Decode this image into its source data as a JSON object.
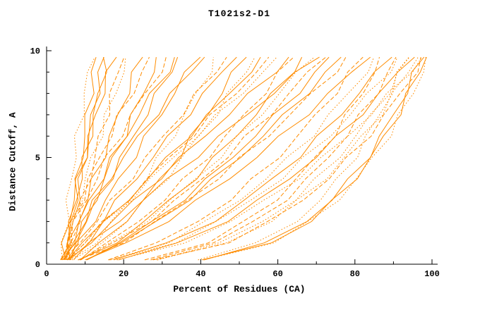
{
  "title": "T1021s2-D1",
  "axes": {
    "xlabel": "Percent of Residues (CA)",
    "ylabel": "Distance Cutoff, A"
  },
  "chart_data": {
    "type": "line",
    "title": "T1021s2-D1",
    "xlabel": "Percent of Residues (CA)",
    "ylabel": "Distance Cutoff, A",
    "xlim": [
      0,
      100
    ],
    "ylim": [
      0,
      10
    ],
    "x_ticks": [
      0,
      20,
      40,
      60,
      80,
      100
    ],
    "x_minor_step": 10,
    "y_ticks": [
      0,
      5,
      10
    ],
    "y_minor_step": 1,
    "grid": false,
    "legend": "none",
    "line_color": "#ff8c00",
    "y_values": [
      0.2,
      1,
      2,
      3,
      4,
      5,
      6,
      7,
      8,
      9,
      9.7
    ],
    "series": [
      {
        "style": "dotted",
        "x": [
          40.7,
          58.4,
          68.6,
          75.3,
          80.5,
          84.9,
          88.6,
          91.9,
          94.9,
          97.5,
          99.2
        ]
      },
      {
        "style": "solid",
        "x": [
          40.0,
          57.3,
          67.2,
          73.8,
          78.9,
          83.2,
          86.8,
          90.1,
          93.0,
          95.6,
          97.3
        ]
      },
      {
        "style": "dotted",
        "x": [
          29.1,
          46.7,
          57.8,
          65.7,
          72.1,
          77.3,
          82.1,
          86.4,
          90.2,
          93.7,
          96.0
        ]
      },
      {
        "style": "dashed",
        "x": [
          28.1,
          46.5,
          58.1,
          66.3,
          73.0,
          78.5,
          83.4,
          87.9,
          91.9,
          95.6,
          98.0
        ]
      },
      {
        "style": "dotted",
        "x": [
          27.9,
          45.2,
          56.2,
          64.0,
          70.3,
          75.6,
          80.2,
          84.5,
          88.3,
          91.8,
          94.0
        ]
      },
      {
        "style": "solid",
        "x": [
          18.7,
          34.4,
          46.2,
          55.3,
          62.9,
          69.6,
          75.8,
          81.3,
          86.5,
          91.4,
          94.7
        ]
      },
      {
        "style": "dotted",
        "x": [
          17.4,
          32.8,
          44.3,
          53.2,
          60.6,
          67.2,
          73.2,
          78.7,
          83.7,
          88.5,
          91.7
        ]
      },
      {
        "style": "dashed",
        "x": [
          26.4,
          43.3,
          54.1,
          61.7,
          67.9,
          73.0,
          77.6,
          81.7,
          85.4,
          88.8,
          91.0
        ]
      },
      {
        "style": "solid",
        "x": [
          17.0,
          31.9,
          43.0,
          51.6,
          58.7,
          65.1,
          70.9,
          76.1,
          81.0,
          85.7,
          88.7
        ]
      },
      {
        "style": "dotted",
        "x": [
          19.1,
          35.4,
          47.6,
          57.0,
          64.8,
          71.8,
          78.1,
          83.8,
          89.1,
          94.2,
          97.6
        ]
      },
      {
        "style": "dashed",
        "x": [
          25.3,
          41.5,
          51.8,
          59.1,
          65.0,
          69.9,
          74.2,
          78.2,
          81.7,
          85.0,
          87.1
        ]
      },
      {
        "style": "dotted",
        "x": [
          38.5,
          55.0,
          64.6,
          70.9,
          75.8,
          79.8,
          83.3,
          86.4,
          89.2,
          91.7,
          93.3
        ]
      },
      {
        "style": "solid",
        "x": [
          41.0,
          58.3,
          68.2,
          74.8,
          79.9,
          84.2,
          87.8,
          91.1,
          94.0,
          96.6,
          98.3
        ]
      },
      {
        "style": "dotted",
        "x": [
          16.6,
          30.9,
          41.7,
          49.9,
          56.8,
          63.0,
          68.6,
          73.6,
          78.3,
          82.8,
          85.8
        ]
      },
      {
        "style": "dashed",
        "x": [
          15.1,
          29.0,
          39.3,
          47.3,
          53.9,
          59.9,
          65.2,
          70.1,
          74.6,
          78.9,
          81.8
        ]
      },
      {
        "style": "solid",
        "x": [
          10.2,
          21.0,
          30.9,
          39.4,
          47.2,
          54.3,
          60.9,
          67.3,
          73.4,
          79.3,
          83.3
        ]
      },
      {
        "style": "dashed",
        "x": [
          8.9,
          19.2,
          28.6,
          36.7,
          44.1,
          50.8,
          57.1,
          63.2,
          69.0,
          74.6,
          78.4
        ]
      },
      {
        "style": "solid",
        "x": [
          9.6,
          19.0,
          27.7,
          35.1,
          41.9,
          48.1,
          53.9,
          59.5,
          64.9,
          70.0,
          73.5
        ]
      },
      {
        "style": "dotted",
        "x": [
          8.3,
          17.2,
          25.4,
          32.4,
          38.8,
          44.7,
          50.1,
          55.4,
          60.4,
          65.3,
          68.6
        ]
      },
      {
        "style": "solid",
        "x": [
          6.2,
          11.0,
          17.0,
          23.0,
          29.0,
          35.0,
          41.0,
          47.0,
          53.0,
          59.0,
          63.2
        ]
      },
      {
        "style": "dashed",
        "x": [
          5.1,
          9.6,
          15.2,
          20.8,
          26.4,
          32.0,
          37.6,
          43.2,
          48.8,
          54.4,
          58.3
        ]
      },
      {
        "style": "solid",
        "x": [
          6.3,
          11.7,
          18.4,
          25.1,
          31.8,
          38.5,
          45.2,
          51.9,
          58.6,
          65.3,
          70.0
        ]
      },
      {
        "style": "dotted",
        "x": [
          7.3,
          14.2,
          20.5,
          25.9,
          30.9,
          35.4,
          39.6,
          43.7,
          47.6,
          51.4,
          53.9
        ]
      },
      {
        "style": "solid",
        "x": [
          6.1,
          10.3,
          15.6,
          20.9,
          26.2,
          31.5,
          36.8,
          42.1,
          47.4,
          52.7,
          56.4
        ]
      },
      {
        "style": "dashed",
        "x": [
          8.0,
          16.2,
          23.8,
          30.2,
          36.1,
          41.6,
          46.6,
          51.5,
          56.2,
          60.7,
          63.7
        ]
      },
      {
        "style": "solid",
        "x": [
          5.9,
          9.5,
          14.0,
          18.5,
          23.0,
          27.5,
          32.0,
          36.5,
          41.0,
          45.5,
          48.7
        ]
      },
      {
        "style": "dotted",
        "x": [
          6.7,
          12.2,
          17.3,
          21.6,
          25.6,
          29.3,
          32.7,
          35.9,
          39.1,
          42.1,
          44.1
        ]
      },
      {
        "style": "solid",
        "x": [
          9.7,
          19.6,
          28.7,
          36.4,
          43.5,
          50.0,
          56.0,
          61.9,
          67.4,
          72.8,
          76.5
        ]
      },
      {
        "style": "dashed",
        "x": [
          8.5,
          17.8,
          26.4,
          33.7,
          40.4,
          46.5,
          52.2,
          57.8,
          63.0,
          68.1,
          71.6
        ]
      },
      {
        "style": "solid",
        "x": [
          9.1,
          17.6,
          25.4,
          32.1,
          38.2,
          43.8,
          49.0,
          54.1,
          58.9,
          63.5,
          66.7
        ]
      },
      {
        "style": "dotted",
        "x": [
          5.2,
          9.8,
          15.6,
          21.4,
          27.2,
          33.0,
          38.8,
          44.6,
          50.4,
          56.2,
          60.3
        ]
      },
      {
        "style": "solid",
        "x": [
          8.1,
          14.4,
          20.2,
          25.2,
          29.8,
          34.0,
          37.9,
          41.6,
          45.2,
          48.7,
          51.0
        ]
      },
      {
        "style": "dashed",
        "x": [
          4.9,
          8.4,
          12.8,
          17.2,
          21.6,
          26.0,
          30.4,
          34.8,
          39.2,
          43.6,
          46.7
        ]
      },
      {
        "style": "solid",
        "x": [
          5.5,
          7.5,
          10.0,
          12.5,
          15.0,
          17.5,
          20.0,
          22.5,
          25.0,
          27.5,
          29.3
        ]
      },
      {
        "style": "solid",
        "x": [
          4.4,
          6.1,
          8.2,
          10.3,
          12.4,
          14.5,
          16.6,
          18.7,
          20.8,
          22.9,
          24.4
        ]
      },
      {
        "style": "dashed",
        "x": [
          5.3,
          6.5,
          8.0,
          9.5,
          11.0,
          12.5,
          14.0,
          15.5,
          17.0,
          18.5,
          19.6
        ]
      },
      {
        "style": "solid",
        "x": [
          4.2,
          5.2,
          6.4,
          7.6,
          8.8,
          10.0,
          11.2,
          12.4,
          13.6,
          14.8,
          15.6
        ]
      },
      {
        "style": "solid",
        "x": [
          5.2,
          5.8,
          6.6,
          7.4,
          8.2,
          9.0,
          9.8,
          10.6,
          11.4,
          12.2,
          12.8
        ]
      },
      {
        "style": "dotted",
        "x": [
          4.0,
          4.4,
          5.0,
          5.7,
          6.4,
          7.2,
          8.1,
          9.0,
          10.0,
          11.0,
          11.7
        ]
      },
      {
        "style": "solid",
        "x": [
          5.2,
          6.5,
          8.7,
          11.3,
          14.1,
          17.2,
          20.5,
          23.9,
          27.4,
          31.2,
          33.8
        ]
      },
      {
        "style": "dashed",
        "x": [
          4.1,
          5.2,
          7.0,
          9.0,
          11.3,
          13.7,
          16.4,
          19.1,
          22.0,
          24.9,
          27.1
        ]
      },
      {
        "style": "solid",
        "x": [
          5.7,
          8.5,
          12.0,
          15.5,
          19.0,
          22.5,
          26.0,
          29.5,
          33.0,
          36.5,
          39.0
        ]
      },
      {
        "style": "solid",
        "x": [
          4.6,
          7.1,
          10.2,
          13.3,
          16.4,
          19.5,
          22.6,
          25.7,
          28.8,
          31.9,
          34.1
        ]
      },
      {
        "style": "dotted",
        "x": [
          5.1,
          5.9,
          7.1,
          8.6,
          10.2,
          11.9,
          13.8,
          15.7,
          17.7,
          19.8,
          21.3
        ]
      },
      {
        "style": "solid",
        "x": [
          4.1,
          4.7,
          5.7,
          6.9,
          8.3,
          9.7,
          11.2,
          12.8,
          14.5,
          16.2,
          17.5
        ]
      },
      {
        "style": "solid",
        "x": [
          5.2,
          6.9,
          9.6,
          12.7,
          16.2,
          20.0,
          24.1,
          28.3,
          32.7,
          37.3,
          40.6
        ]
      },
      {
        "style": "dashed",
        "x": [
          4.2,
          5.5,
          7.6,
          10.1,
          12.8,
          15.8,
          18.9,
          22.2,
          25.7,
          29.3,
          31.9
        ]
      },
      {
        "style": "solid",
        "x": [
          5.2,
          6.0,
          7.0,
          8.0,
          9.0,
          10.0,
          11.0,
          12.0,
          13.0,
          14.0,
          14.7
        ]
      }
    ]
  }
}
